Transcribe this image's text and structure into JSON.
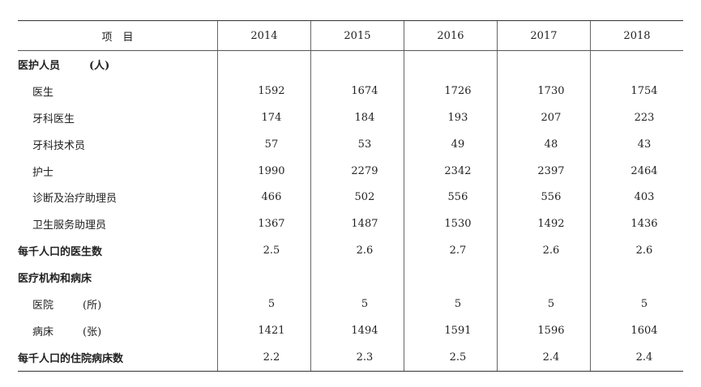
{
  "table": {
    "header": [
      "项　目",
      "2014",
      "2015",
      "2016",
      "2017",
      "2018"
    ],
    "sections": [
      {
        "label": "医护人员",
        "unit": "(人)",
        "rows": [
          {
            "label": "医生",
            "values": [
              1592,
              1674,
              1726,
              1730,
              1754
            ]
          },
          {
            "label": "牙科医生",
            "values": [
              174,
              184,
              193,
              207,
              223
            ]
          },
          {
            "label": "牙科技术员",
            "values": [
              57,
              53,
              49,
              48,
              43
            ]
          },
          {
            "label": "护士",
            "values": [
              1990,
              2279,
              2342,
              2397,
              2464
            ]
          },
          {
            "label": "诊断及治疗助理员",
            "values": [
              466,
              502,
              556,
              556,
              403
            ]
          },
          {
            "label": "卫生服务助理员",
            "values": [
              1367,
              1487,
              1530,
              1492,
              1436
            ]
          }
        ]
      },
      {
        "label": "每千人口的医生数",
        "values": [
          2.5,
          2.6,
          2.7,
          2.6,
          2.6
        ]
      },
      {
        "label": "医疗机构和病床",
        "rows": [
          {
            "label": "医院",
            "unit": "(所)",
            "values": [
              5,
              5,
              5,
              5,
              5
            ]
          },
          {
            "label": "病床",
            "unit": "(张)",
            "values": [
              1421,
              1494,
              1591,
              1596,
              1604
            ]
          }
        ]
      },
      {
        "label": "每千人口的住院病床数",
        "values": [
          2.2,
          2.3,
          2.5,
          2.4,
          2.4
        ]
      }
    ]
  }
}
